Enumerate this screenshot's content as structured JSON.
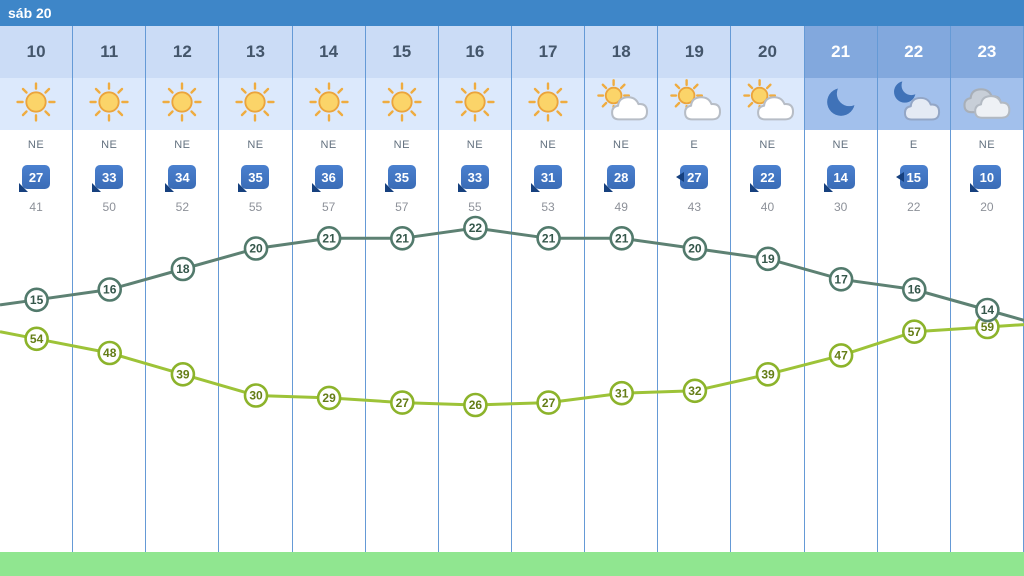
{
  "header": {
    "date_label": "sáb 20"
  },
  "columns": [
    {
      "hour": "10",
      "night": false,
      "icon": "sun",
      "wind_dir": "NE",
      "wind_speed": "27",
      "gust": "41",
      "arrow": "sw"
    },
    {
      "hour": "11",
      "night": false,
      "icon": "sun",
      "wind_dir": "NE",
      "wind_speed": "33",
      "gust": "50",
      "arrow": "sw"
    },
    {
      "hour": "12",
      "night": false,
      "icon": "sun",
      "wind_dir": "NE",
      "wind_speed": "34",
      "gust": "52",
      "arrow": "sw"
    },
    {
      "hour": "13",
      "night": false,
      "icon": "sun",
      "wind_dir": "NE",
      "wind_speed": "35",
      "gust": "55",
      "arrow": "sw"
    },
    {
      "hour": "14",
      "night": false,
      "icon": "sun",
      "wind_dir": "NE",
      "wind_speed": "36",
      "gust": "57",
      "arrow": "sw"
    },
    {
      "hour": "15",
      "night": false,
      "icon": "sun",
      "wind_dir": "NE",
      "wind_speed": "35",
      "gust": "57",
      "arrow": "sw"
    },
    {
      "hour": "16",
      "night": false,
      "icon": "sun",
      "wind_dir": "NE",
      "wind_speed": "33",
      "gust": "55",
      "arrow": "sw"
    },
    {
      "hour": "17",
      "night": false,
      "icon": "sun",
      "wind_dir": "NE",
      "wind_speed": "31",
      "gust": "53",
      "arrow": "sw"
    },
    {
      "hour": "18",
      "night": false,
      "icon": "sun-cloud",
      "wind_dir": "NE",
      "wind_speed": "28",
      "gust": "49",
      "arrow": "sw"
    },
    {
      "hour": "19",
      "night": false,
      "icon": "sun-cloud",
      "wind_dir": "E",
      "wind_speed": "27",
      "gust": "43",
      "arrow": "w"
    },
    {
      "hour": "20",
      "night": false,
      "icon": "sun-cloud",
      "wind_dir": "NE",
      "wind_speed": "22",
      "gust": "40",
      "arrow": "sw"
    },
    {
      "hour": "21",
      "night": true,
      "icon": "moon",
      "wind_dir": "NE",
      "wind_speed": "14",
      "gust": "30",
      "arrow": "sw"
    },
    {
      "hour": "22",
      "night": true,
      "icon": "moon-cloud",
      "wind_dir": "E",
      "wind_speed": "15",
      "gust": "22",
      "arrow": "w"
    },
    {
      "hour": "23",
      "night": true,
      "icon": "clouds",
      "wind_dir": "NE",
      "wind_speed": "10",
      "gust": "20",
      "arrow": "sw"
    }
  ],
  "chart_data": {
    "type": "line",
    "x_hours": [
      10,
      11,
      12,
      13,
      14,
      15,
      16,
      17,
      18,
      19,
      20,
      21,
      22,
      23
    ],
    "series": [
      {
        "name": "temperature",
        "color": "#527a6c",
        "line_color": "#5d8173",
        "text_color": "#35574b",
        "values": [
          15,
          16,
          18,
          20,
          21,
          21,
          22,
          21,
          21,
          20,
          19,
          17,
          16,
          14
        ]
      },
      {
        "name": "humidity",
        "color": "#8cb32b",
        "line_color": "#9dc338",
        "text_color": "#647d16",
        "values": [
          54,
          48,
          39,
          30,
          29,
          27,
          26,
          27,
          31,
          32,
          39,
          47,
          57,
          59
        ]
      }
    ],
    "legend": "none",
    "grid": "vertical-column-separators"
  },
  "colors": {
    "header_blue": "#3e86c8",
    "separator_blue": "#659ad6",
    "wind_badge_blue": "#3f74c1",
    "footer_green": "#90e690",
    "day_header_bg": "#cbdcf6",
    "night_header_bg": "#82a8dd"
  }
}
